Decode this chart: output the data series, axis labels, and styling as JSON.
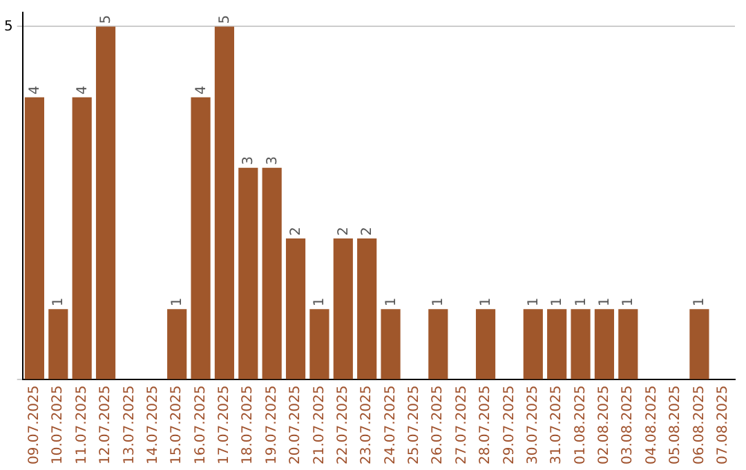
{
  "chart_data": {
    "type": "bar",
    "categories": [
      "09.07.2025",
      "10.07.2025",
      "11.07.2025",
      "12.07.2025",
      "13.07.2025",
      "14.07.2025",
      "15.07.2025",
      "16.07.2025",
      "17.07.2025",
      "18.07.2025",
      "19.07.2025",
      "20.07.2025",
      "21.07.2025",
      "22.07.2025",
      "23.07.2025",
      "24.07.2025",
      "25.07.2025",
      "26.07.2025",
      "27.07.2025",
      "28.07.2025",
      "29.07.2025",
      "30.07.2025",
      "31.07.2025",
      "01.08.2025",
      "02.08.2025",
      "03.08.2025",
      "04.08.2025",
      "05.08.2025",
      "06.08.2025",
      "07.08.2025"
    ],
    "values": [
      4,
      1,
      4,
      5,
      0,
      0,
      1,
      4,
      5,
      3,
      3,
      2,
      1,
      2,
      2,
      1,
      0,
      1,
      0,
      1,
      0,
      1,
      1,
      1,
      1,
      1,
      0,
      0,
      1,
      0
    ],
    "value_labels": [
      "4",
      "1",
      "4",
      "5",
      null,
      null,
      "1",
      "4",
      "5",
      "3",
      "3",
      "2",
      "1",
      "2",
      "2",
      "1",
      null,
      "1",
      null,
      "1",
      null,
      "1",
      "1",
      "1",
      "1",
      "1",
      null,
      null,
      "1",
      null
    ],
    "color": "#a0572b",
    "ylim": [
      0,
      5.2
    ],
    "yticks": [
      {
        "value": 0,
        "label": null
      },
      5
    ],
    "grid": "y",
    "legend": false
  }
}
